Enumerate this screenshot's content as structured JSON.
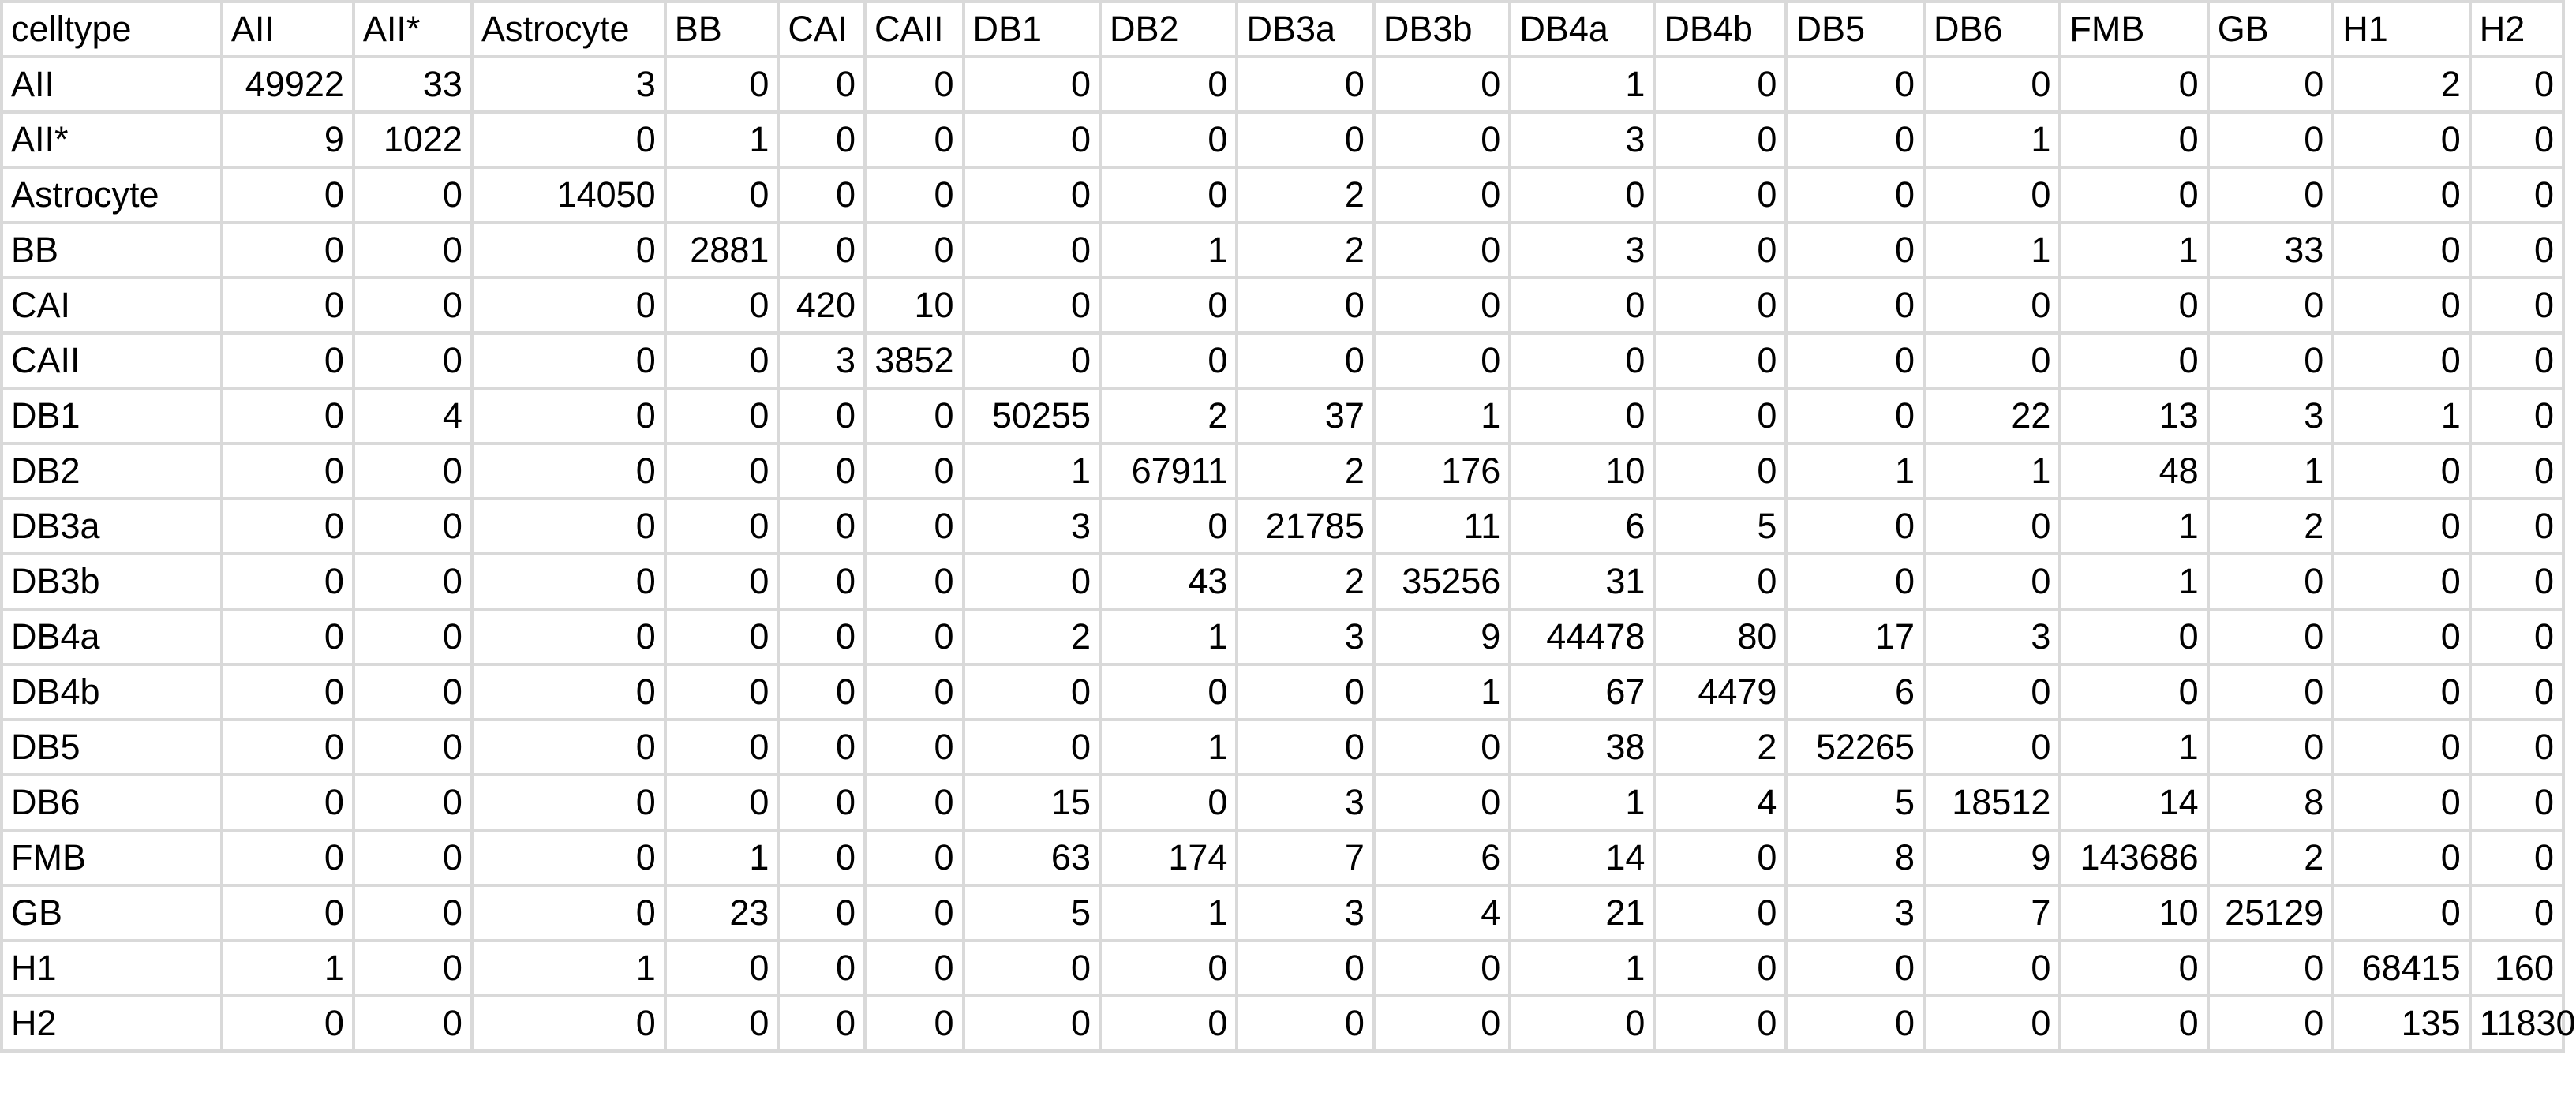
{
  "chart_data": {
    "type": "table",
    "columns": [
      "celltype",
      "AII",
      "AII*",
      "Astrocyte",
      "BB",
      "CAI",
      "CAII",
      "DB1",
      "DB2",
      "DB3a",
      "DB3b",
      "DB4a",
      "DB4b",
      "DB5",
      "DB6",
      "FMB",
      "GB",
      "H1",
      "H2"
    ],
    "rows": [
      [
        "AII",
        49922,
        33,
        3,
        0,
        0,
        0,
        0,
        0,
        0,
        0,
        1,
        0,
        0,
        0,
        0,
        0,
        2,
        0
      ],
      [
        "AII*",
        9,
        1022,
        0,
        1,
        0,
        0,
        0,
        0,
        0,
        0,
        3,
        0,
        0,
        1,
        0,
        0,
        0,
        0
      ],
      [
        "Astrocyte",
        0,
        0,
        14050,
        0,
        0,
        0,
        0,
        0,
        2,
        0,
        0,
        0,
        0,
        0,
        0,
        0,
        0,
        0
      ],
      [
        "BB",
        0,
        0,
        0,
        2881,
        0,
        0,
        0,
        1,
        2,
        0,
        3,
        0,
        0,
        1,
        1,
        33,
        0,
        0
      ],
      [
        "CAI",
        0,
        0,
        0,
        0,
        420,
        10,
        0,
        0,
        0,
        0,
        0,
        0,
        0,
        0,
        0,
        0,
        0,
        0
      ],
      [
        "CAII",
        0,
        0,
        0,
        0,
        3,
        3852,
        0,
        0,
        0,
        0,
        0,
        0,
        0,
        0,
        0,
        0,
        0,
        0
      ],
      [
        "DB1",
        0,
        4,
        0,
        0,
        0,
        0,
        50255,
        2,
        37,
        1,
        0,
        0,
        0,
        22,
        13,
        3,
        1,
        0
      ],
      [
        "DB2",
        0,
        0,
        0,
        0,
        0,
        0,
        1,
        67911,
        2,
        176,
        10,
        0,
        1,
        1,
        48,
        1,
        0,
        0
      ],
      [
        "DB3a",
        0,
        0,
        0,
        0,
        0,
        0,
        3,
        0,
        21785,
        11,
        6,
        5,
        0,
        0,
        1,
        2,
        0,
        0
      ],
      [
        "DB3b",
        0,
        0,
        0,
        0,
        0,
        0,
        0,
        43,
        2,
        35256,
        31,
        0,
        0,
        0,
        1,
        0,
        0,
        0
      ],
      [
        "DB4a",
        0,
        0,
        0,
        0,
        0,
        0,
        2,
        1,
        3,
        9,
        44478,
        80,
        17,
        3,
        0,
        0,
        0,
        0
      ],
      [
        "DB4b",
        0,
        0,
        0,
        0,
        0,
        0,
        0,
        0,
        0,
        1,
        67,
        4479,
        6,
        0,
        0,
        0,
        0,
        0
      ],
      [
        "DB5",
        0,
        0,
        0,
        0,
        0,
        0,
        0,
        1,
        0,
        0,
        38,
        2,
        52265,
        0,
        1,
        0,
        0,
        0
      ],
      [
        "DB6",
        0,
        0,
        0,
        0,
        0,
        0,
        15,
        0,
        3,
        0,
        1,
        4,
        5,
        18512,
        14,
        8,
        0,
        0
      ],
      [
        "FMB",
        0,
        0,
        0,
        1,
        0,
        0,
        63,
        174,
        7,
        6,
        14,
        0,
        8,
        9,
        143686,
        2,
        0,
        0
      ],
      [
        "GB",
        0,
        0,
        0,
        23,
        0,
        0,
        5,
        1,
        3,
        4,
        21,
        0,
        3,
        7,
        10,
        25129,
        0,
        0
      ],
      [
        "H1",
        1,
        0,
        1,
        0,
        0,
        0,
        0,
        0,
        0,
        0,
        1,
        0,
        0,
        0,
        0,
        0,
        68415,
        160
      ],
      [
        "H2",
        0,
        0,
        0,
        0,
        0,
        0,
        0,
        0,
        0,
        0,
        0,
        0,
        0,
        0,
        0,
        0,
        135,
        11830
      ]
    ],
    "grid": true
  },
  "colors": {
    "grid": "#d9d9d9",
    "text": "#000000",
    "background": "#ffffff"
  }
}
